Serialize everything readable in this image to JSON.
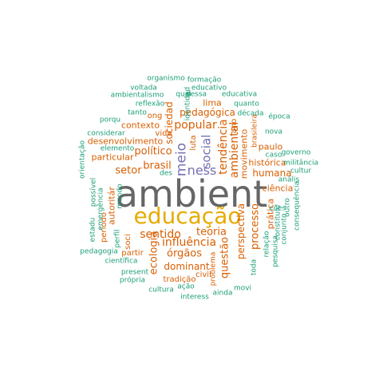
{
  "colors": {
    "gray": "#666666",
    "gold": "#e6ab02",
    "purple": "#7570b3",
    "orange": "#d95f02",
    "teal": "#1b9e77"
  },
  "words": [
    {
      "text": "ambient",
      "color": "gray"
    },
    {
      "text": "educação",
      "color": "gold"
    },
    {
      "text": "ness",
      "color": "purple"
    },
    {
      "text": "meio",
      "color": "purple"
    },
    {
      "text": "social",
      "color": "purple"
    },
    {
      "text": "ambiental",
      "color": "orange"
    },
    {
      "text": "tendência",
      "color": "orange"
    },
    {
      "text": "popular",
      "color": "orange"
    },
    {
      "text": "político",
      "color": "orange"
    },
    {
      "text": "brasil",
      "color": "orange"
    },
    {
      "text": "setor",
      "color": "orange"
    },
    {
      "text": "sociedad",
      "color": "orange"
    },
    {
      "text": "pedagógica",
      "color": "orange"
    },
    {
      "text": "lima",
      "color": "orange"
    },
    {
      "text": "contexto",
      "color": "orange"
    },
    {
      "text": "desenvolvimento",
      "color": "orange"
    },
    {
      "text": "sentido",
      "color": "orange"
    },
    {
      "text": "teoria",
      "color": "orange"
    },
    {
      "text": "influência",
      "color": "orange"
    },
    {
      "text": "órgãos",
      "color": "orange"
    },
    {
      "text": "dominant",
      "color": "orange"
    },
    {
      "text": "ecologia",
      "color": "orange"
    },
    {
      "text": "questão",
      "color": "orange"
    },
    {
      "text": "perspectiva",
      "color": "orange"
    },
    {
      "text": "processo",
      "color": "orange"
    },
    {
      "text": "humana",
      "color": "orange"
    },
    {
      "text": "movimento",
      "color": "orange"
    },
    {
      "text": "paulo",
      "color": "orange"
    },
    {
      "text": "histórica",
      "color": "orange"
    },
    {
      "text": "ciência",
      "color": "orange"
    },
    {
      "text": "prática",
      "color": "orange"
    },
    {
      "text": "particular",
      "color": "orange"
    },
    {
      "text": "autoritár",
      "color": "orange"
    },
    {
      "text": "período",
      "color": "orange"
    },
    {
      "text": "soci",
      "color": "orange"
    },
    {
      "text": "partir",
      "color": "orange"
    },
    {
      "text": "tradição",
      "color": "orange"
    },
    {
      "text": "civil",
      "color": "orange"
    },
    {
      "text": "problema",
      "color": "orange"
    },
    {
      "text": "ano",
      "color": "orange"
    },
    {
      "text": "luta",
      "color": "orange"
    },
    {
      "text": "vida",
      "color": "orange"
    },
    {
      "text": "ong",
      "color": "orange"
    },
    {
      "text": "brasileira",
      "color": "orange"
    },
    {
      "text": "organismo",
      "color": "teal"
    },
    {
      "text": "formação",
      "color": "teal"
    },
    {
      "text": "voltada",
      "color": "teal"
    },
    {
      "text": "educativo",
      "color": "teal"
    },
    {
      "text": "ambientalismo",
      "color": "teal"
    },
    {
      "text": "quai",
      "color": "teal"
    },
    {
      "text": "dessa",
      "color": "teal"
    },
    {
      "text": "educativa",
      "color": "teal"
    },
    {
      "text": "reflexão",
      "color": "teal"
    },
    {
      "text": "quanto",
      "color": "teal"
    },
    {
      "text": "tanto",
      "color": "teal"
    },
    {
      "text": "identidad",
      "color": "teal"
    },
    {
      "text": "década",
      "color": "teal"
    },
    {
      "text": "porqu",
      "color": "teal"
    },
    {
      "text": "época",
      "color": "teal"
    },
    {
      "text": "considerar",
      "color": "teal"
    },
    {
      "text": "nova",
      "color": "teal"
    },
    {
      "text": "elemento",
      "color": "teal"
    },
    {
      "text": "governo",
      "color": "teal"
    },
    {
      "text": "caso",
      "color": "teal"
    },
    {
      "text": "orientação",
      "color": "teal"
    },
    {
      "text": "militância",
      "color": "teal"
    },
    {
      "text": "cultur",
      "color": "teal"
    },
    {
      "text": "des",
      "color": "teal"
    },
    {
      "text": "possível",
      "color": "teal"
    },
    {
      "text": "emergência",
      "color": "teal"
    },
    {
      "text": "anális",
      "color": "teal"
    },
    {
      "text": "mundo",
      "color": "teal"
    },
    {
      "text": "estadu",
      "color": "teal"
    },
    {
      "text": "ções",
      "color": "teal"
    },
    {
      "text": "constituiu",
      "color": "teal"
    },
    {
      "text": "outro",
      "color": "teal"
    },
    {
      "text": "consequência",
      "color": "teal"
    },
    {
      "text": "conjunto",
      "color": "teal"
    },
    {
      "text": "pesquisa",
      "color": "teal"
    },
    {
      "text": "relação",
      "color": "teal"
    },
    {
      "text": "toda",
      "color": "teal"
    },
    {
      "text": "perfil",
      "color": "teal"
    },
    {
      "text": "pedagogia",
      "color": "teal"
    },
    {
      "text": "científica",
      "color": "teal"
    },
    {
      "text": "present",
      "color": "teal"
    },
    {
      "text": "própria",
      "color": "teal"
    },
    {
      "text": "ação",
      "color": "teal"
    },
    {
      "text": "cultura",
      "color": "teal"
    },
    {
      "text": "interess",
      "color": "teal"
    },
    {
      "text": "ainda",
      "color": "teal"
    },
    {
      "text": "movi",
      "color": "teal"
    }
  ]
}
